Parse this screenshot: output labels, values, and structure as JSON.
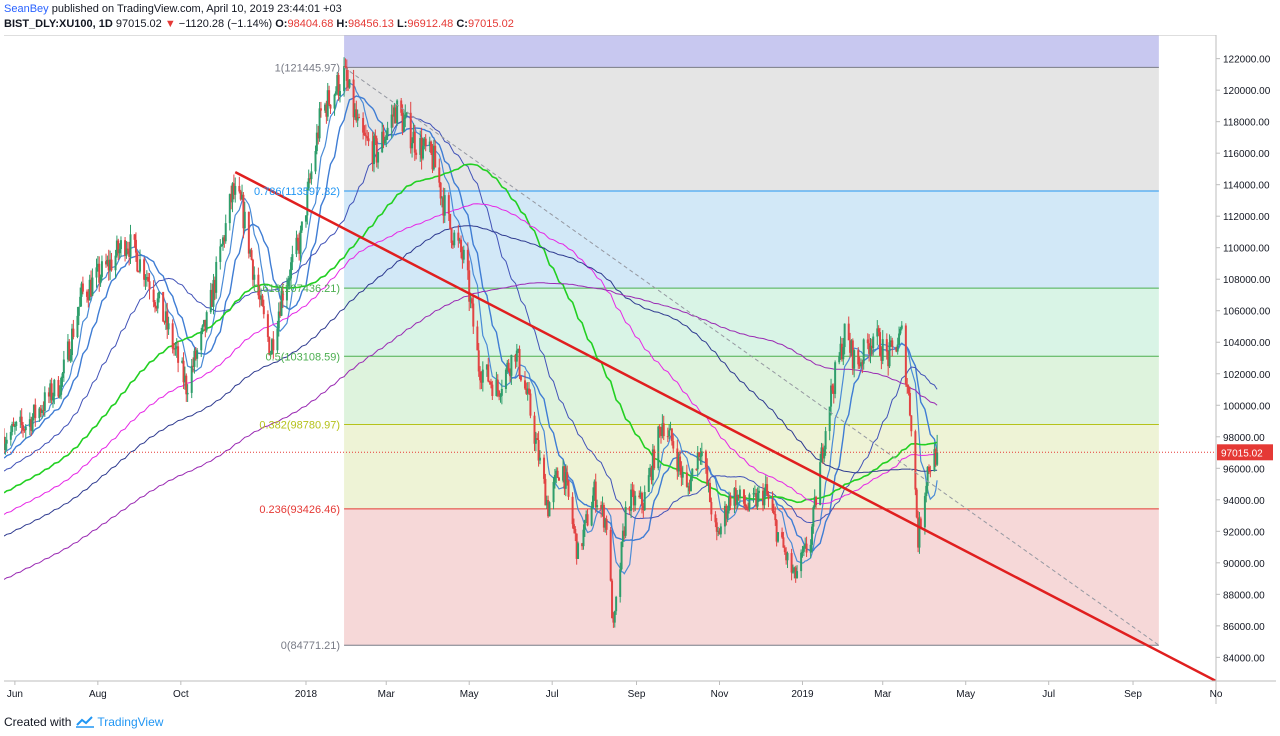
{
  "header": {
    "author": "SeanBey",
    "published_text": "published on TradingView.com, April 10, 2019 23:44:01 +03",
    "symbol": "BIST_DLY:XU100, 1D",
    "last": "97015.02",
    "change_arrow": "▼",
    "change": "−1120.28 (−1.14%)",
    "open_label": "O:",
    "open": "98404.68",
    "high_label": "H:",
    "high": "98456.13",
    "low_label": "L:",
    "low": "96912.48",
    "close_label": "C:",
    "close": "97015.02"
  },
  "footer": {
    "created_with": "Created with",
    "brand": "TradingView"
  },
  "colors": {
    "up": "#2e9e6b",
    "down": "#e24343",
    "fib_top": "#c8c8f0",
    "fib_1_0786": "#e5e5e5",
    "fib_0786_0618": "#d2e8f7",
    "fib_0618_05": "#d9f4e6",
    "fib_05_0382": "#def3dd",
    "fib_0382_0236": "#eef3d6",
    "fib_0236_0": "#f6d8d8",
    "trendline": "#e01f1f",
    "price_tag": "#e53935"
  },
  "chart_data": {
    "type": "candlestick",
    "ylim": [
      82500,
      123500
    ],
    "y_ticks": [
      "84000.00",
      "86000.00",
      "88000.00",
      "90000.00",
      "92000.00",
      "94000.00",
      "96000.00",
      "98000.00",
      "100000.00",
      "102000.00",
      "104000.00",
      "106000.00",
      "108000.00",
      "110000.00",
      "112000.00",
      "114000.00",
      "116000.00",
      "118000.00",
      "120000.00",
      "122000.00"
    ],
    "y_tick_values": [
      84000,
      86000,
      88000,
      90000,
      92000,
      94000,
      96000,
      98000,
      100000,
      102000,
      104000,
      106000,
      108000,
      110000,
      112000,
      114000,
      116000,
      118000,
      120000,
      122000
    ],
    "x_labels": [
      "Jun",
      "Aug",
      "Oct",
      "2018",
      "Mar",
      "May",
      "Jul",
      "Sep",
      "Nov",
      "2019",
      "Mar",
      "May",
      "Jul",
      "Sep",
      "No"
    ],
    "x_label_dates": [
      "2017-06-01",
      "2017-08-01",
      "2017-10-01",
      "2018-01-01",
      "2018-03-01",
      "2018-05-01",
      "2018-07-01",
      "2018-09-01",
      "2018-11-01",
      "2019-01-01",
      "2019-03-01",
      "2019-05-01",
      "2019-07-01",
      "2019-09-01",
      "2019-11-01"
    ],
    "x_range": [
      "2017-05-24",
      "2019-11-01"
    ],
    "current_price_label": "97015.02",
    "current_price": 97015.02,
    "fib_retracement": {
      "start_date": "2018-01-29",
      "end_date": "2019-09-20",
      "levels": [
        {
          "ratio": 1,
          "label": "1(121445.97)",
          "price": 121445.97
        },
        {
          "ratio": 0.786,
          "label": "0.786(113597.32)",
          "price": 113597.32
        },
        {
          "ratio": 0.618,
          "label": "0.618(107436.21)",
          "price": 107436.21
        },
        {
          "ratio": 0.5,
          "label": "0.5(103108.59)",
          "price": 103108.59
        },
        {
          "ratio": 0.382,
          "label": "0.382(98780.97)",
          "price": 98780.97
        },
        {
          "ratio": 0.236,
          "label": "0.236(93426.46)",
          "price": 93426.46
        },
        {
          "ratio": 0,
          "label": "0(84771.21)",
          "price": 84771.21
        }
      ],
      "top_price": 123500
    },
    "trendline": {
      "start_date": "2017-11-10",
      "start_price": 114800,
      "end_date": "2019-11-01",
      "end_price": 82500
    },
    "dashed_line": {
      "start_date": "2018-01-29",
      "start_price": 121445,
      "end_date": "2019-09-20",
      "end_price": 84771
    },
    "anchors": [
      [
        "2017-05-24",
        98000
      ],
      [
        "2017-06-10",
        98800
      ],
      [
        "2017-07-05",
        101500
      ],
      [
        "2017-07-20",
        107000
      ],
      [
        "2017-08-10",
        109000
      ],
      [
        "2017-08-22",
        110500
      ],
      [
        "2017-09-05",
        108500
      ],
      [
        "2017-09-20",
        105200
      ],
      [
        "2017-10-05",
        101200
      ],
      [
        "2017-10-20",
        105200
      ],
      [
        "2017-11-08",
        113500
      ],
      [
        "2017-11-15",
        112500
      ],
      [
        "2017-11-28",
        106500
      ],
      [
        "2017-12-06",
        103500
      ],
      [
        "2017-12-14",
        107000
      ],
      [
        "2017-12-28",
        110500
      ],
      [
        "2018-01-12",
        118500
      ],
      [
        "2018-01-29",
        121000
      ],
      [
        "2018-02-10",
        117000
      ],
      [
        "2018-02-22",
        116000
      ],
      [
        "2018-03-08",
        118800
      ],
      [
        "2018-03-22",
        116800
      ],
      [
        "2018-04-05",
        115500
      ],
      [
        "2018-04-16",
        111500
      ],
      [
        "2018-04-28",
        109000
      ],
      [
        "2018-05-08",
        102500
      ],
      [
        "2018-05-22",
        101000
      ],
      [
        "2018-06-04",
        103500
      ],
      [
        "2018-06-14",
        100000
      ],
      [
        "2018-06-28",
        93500
      ],
      [
        "2018-07-08",
        96500
      ],
      [
        "2018-07-20",
        90500
      ],
      [
        "2018-08-01",
        94500
      ],
      [
        "2018-08-10",
        92500
      ],
      [
        "2018-08-15",
        85600
      ],
      [
        "2018-08-25",
        94000
      ],
      [
        "2018-09-06",
        93800
      ],
      [
        "2018-09-20",
        99000
      ],
      [
        "2018-09-28",
        97500
      ],
      [
        "2018-10-08",
        94500
      ],
      [
        "2018-10-18",
        97500
      ],
      [
        "2018-10-30",
        91500
      ],
      [
        "2018-11-10",
        94500
      ],
      [
        "2018-11-22",
        93500
      ],
      [
        "2018-12-05",
        94500
      ],
      [
        "2018-12-15",
        91500
      ],
      [
        "2018-12-26",
        89000
      ],
      [
        "2019-01-07",
        91500
      ],
      [
        "2019-01-20",
        100000
      ],
      [
        "2019-02-01",
        104500
      ],
      [
        "2019-02-10",
        102500
      ],
      [
        "2019-02-22",
        104500
      ],
      [
        "2019-03-05",
        103000
      ],
      [
        "2019-03-15",
        104500
      ],
      [
        "2019-03-22",
        99000
      ],
      [
        "2019-03-27",
        91500
      ],
      [
        "2019-04-03",
        96000
      ],
      [
        "2019-04-10",
        97015
      ]
    ],
    "moving_averages": [
      {
        "period": 10,
        "color": "#4a8bd6",
        "width": 1.2
      },
      {
        "period": 20,
        "color": "#3f7dd4",
        "width": 1.4
      },
      {
        "period": 50,
        "color": "#4253b8",
        "width": 1
      },
      {
        "period": 100,
        "color": "#22d022",
        "width": 1.6
      },
      {
        "period": 150,
        "color": "#e628e6",
        "width": 1
      },
      {
        "period": 200,
        "color": "#2f3b90",
        "width": 1
      },
      {
        "period": 300,
        "color": "#9a2ab3",
        "width": 1
      }
    ]
  }
}
